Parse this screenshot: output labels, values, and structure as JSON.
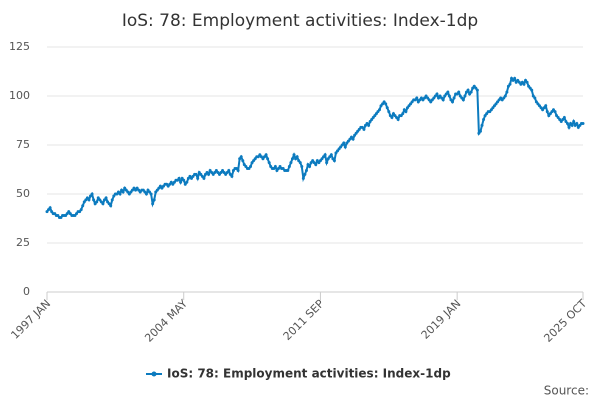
{
  "chart_data": {
    "type": "line",
    "title": "IoS: 78: Employment activities: Index-1dp",
    "categories": [
      "1997 JAN",
      null,
      null,
      null,
      null,
      null,
      null,
      null,
      null,
      null,
      null,
      null,
      null,
      null,
      null,
      null,
      null,
      null,
      null,
      null,
      null,
      null,
      null,
      null,
      null,
      null,
      null,
      null,
      null,
      null,
      null,
      null,
      null,
      null,
      null,
      null,
      null,
      null,
      null,
      null,
      null,
      null,
      null,
      null,
      null,
      null,
      null,
      null,
      null,
      null,
      null,
      null,
      null,
      null,
      null,
      null,
      null,
      null,
      null,
      null,
      null,
      null,
      null,
      null,
      null,
      null,
      null,
      null,
      null,
      null,
      null,
      null,
      null,
      null,
      null,
      null,
      null,
      null,
      null,
      null,
      null,
      null,
      null,
      null,
      null,
      null,
      null,
      null,
      "2004 MAY",
      null,
      null,
      null,
      null,
      null,
      null,
      null,
      null,
      null,
      null,
      null,
      null,
      null,
      null,
      null,
      null,
      null,
      null,
      null,
      null,
      null,
      null,
      null,
      null,
      null,
      null,
      null,
      null,
      null,
      null,
      null,
      null,
      null,
      null,
      null,
      null,
      null,
      null,
      null,
      null,
      null,
      null,
      null,
      null,
      null,
      null,
      null,
      null,
      null,
      null,
      null,
      null,
      null,
      null,
      null,
      null,
      null,
      null,
      null,
      null,
      null,
      null,
      null,
      null,
      null,
      null,
      null,
      null,
      null,
      null,
      null,
      null,
      null,
      null,
      null,
      null,
      null,
      null,
      null,
      null,
      null,
      null,
      null,
      null,
      null,
      null,
      null,
      "2011 SEP",
      null,
      null,
      null,
      null,
      null,
      null,
      null,
      null,
      null,
      null,
      null,
      null,
      null,
      null,
      null,
      null,
      null,
      null,
      null,
      null,
      null,
      null,
      null,
      null,
      null,
      null,
      null,
      null,
      null,
      null,
      null,
      null,
      null,
      null,
      null,
      null,
      null,
      null,
      null,
      null,
      null,
      null,
      null,
      null,
      null,
      null,
      null,
      null,
      null,
      null,
      null,
      null,
      null,
      null,
      null,
      null,
      null,
      null,
      null,
      null,
      null,
      null,
      null,
      null,
      null,
      null,
      null,
      null,
      null,
      null,
      null,
      null,
      null,
      null,
      null,
      null,
      null,
      null,
      null,
      null,
      null,
      null,
      null,
      null,
      null,
      null,
      null,
      "2019 JAN",
      null,
      null,
      null,
      null,
      null,
      null,
      null,
      null,
      null,
      null,
      null,
      null,
      null,
      null,
      null,
      null,
      null,
      null,
      null,
      null,
      null,
      null,
      null,
      null,
      null,
      null,
      null,
      null,
      null,
      null,
      null,
      null,
      null,
      null,
      null,
      null,
      null,
      null,
      null,
      null,
      null,
      null,
      null,
      null,
      null,
      null,
      null,
      null,
      null,
      null,
      null,
      null,
      null,
      null,
      null,
      null,
      null,
      null,
      null,
      null,
      null,
      null,
      null,
      null,
      null,
      null,
      null,
      null,
      null,
      null,
      null,
      null,
      null,
      null,
      null,
      null,
      null,
      null,
      null,
      null,
      "2025 OCT"
    ],
    "series": [
      {
        "name": "IoS: 78: Employment activities: Index-1dp",
        "color": "#0c7bbf",
        "values": [
          41,
          42,
          43,
          41,
          40,
          40,
          39,
          39,
          38,
          38,
          39,
          39,
          39,
          40,
          41,
          40,
          39,
          39,
          39,
          40,
          41,
          41,
          42,
          44,
          46,
          47,
          48,
          47,
          49,
          50,
          47,
          45,
          46,
          48,
          47,
          46,
          45,
          47,
          48,
          46,
          45,
          44,
          47,
          49,
          50,
          50,
          51,
          50,
          52,
          51,
          53,
          52,
          51,
          50,
          51,
          52,
          53,
          52,
          53,
          52,
          51,
          52,
          52,
          51,
          50,
          52,
          51,
          50,
          45,
          47,
          51,
          52,
          53,
          54,
          53,
          54,
          55,
          55,
          54,
          55,
          56,
          55,
          56,
          57,
          57,
          58,
          56,
          58,
          57,
          55,
          56,
          58,
          59,
          58,
          59,
          60,
          60,
          58,
          61,
          60,
          59,
          58,
          60,
          61,
          60,
          62,
          61,
          60,
          61,
          62,
          61,
          60,
          61,
          62,
          61,
          60,
          61,
          62,
          60,
          59,
          62,
          63,
          63,
          62,
          68,
          69,
          67,
          65,
          64,
          63,
          63,
          64,
          66,
          67,
          68,
          69,
          69,
          70,
          69,
          68,
          69,
          70,
          68,
          66,
          64,
          63,
          63,
          64,
          62,
          63,
          64,
          63,
          63,
          62,
          62,
          62,
          64,
          66,
          68,
          70,
          68,
          69,
          67,
          66,
          64,
          58,
          60,
          62,
          65,
          64,
          66,
          67,
          66,
          65,
          67,
          66,
          67,
          68,
          69,
          70,
          66,
          68,
          69,
          70,
          68,
          67,
          71,
          72,
          73,
          74,
          75,
          76,
          74,
          76,
          77,
          78,
          79,
          78,
          80,
          81,
          82,
          83,
          84,
          84,
          83,
          85,
          86,
          85,
          87,
          88,
          89,
          90,
          91,
          92,
          93,
          95,
          96,
          97,
          96,
          94,
          92,
          90,
          89,
          91,
          90,
          89,
          88,
          90,
          90,
          91,
          93,
          92,
          94,
          95,
          96,
          97,
          98,
          98,
          99,
          97,
          98,
          99,
          98,
          99,
          100,
          99,
          98,
          97,
          98,
          99,
          100,
          101,
          99,
          100,
          99,
          98,
          100,
          101,
          102,
          100,
          98,
          97,
          99,
          101,
          101,
          102,
          100,
          99,
          98,
          100,
          102,
          103,
          101,
          102,
          104,
          105,
          104,
          103,
          81,
          82,
          85,
          88,
          90,
          91,
          92,
          92,
          93,
          94,
          95,
          96,
          97,
          98,
          99,
          98,
          99,
          100,
          102,
          105,
          106,
          109,
          108,
          109,
          107,
          108,
          107,
          106,
          107,
          106,
          108,
          107,
          105,
          104,
          103,
          100,
          99,
          97,
          96,
          95,
          94,
          93,
          94,
          95,
          92,
          90,
          91,
          92,
          93,
          92,
          90,
          89,
          88,
          87,
          88,
          89,
          87,
          86,
          84,
          86,
          85,
          87,
          85,
          86,
          84,
          85,
          86,
          86
        ]
      }
    ],
    "ylim": [
      0,
      125
    ],
    "yticks": [
      0,
      25,
      50,
      75,
      100,
      125
    ],
    "grid": true,
    "legend": "bottom",
    "source": "Source:"
  }
}
